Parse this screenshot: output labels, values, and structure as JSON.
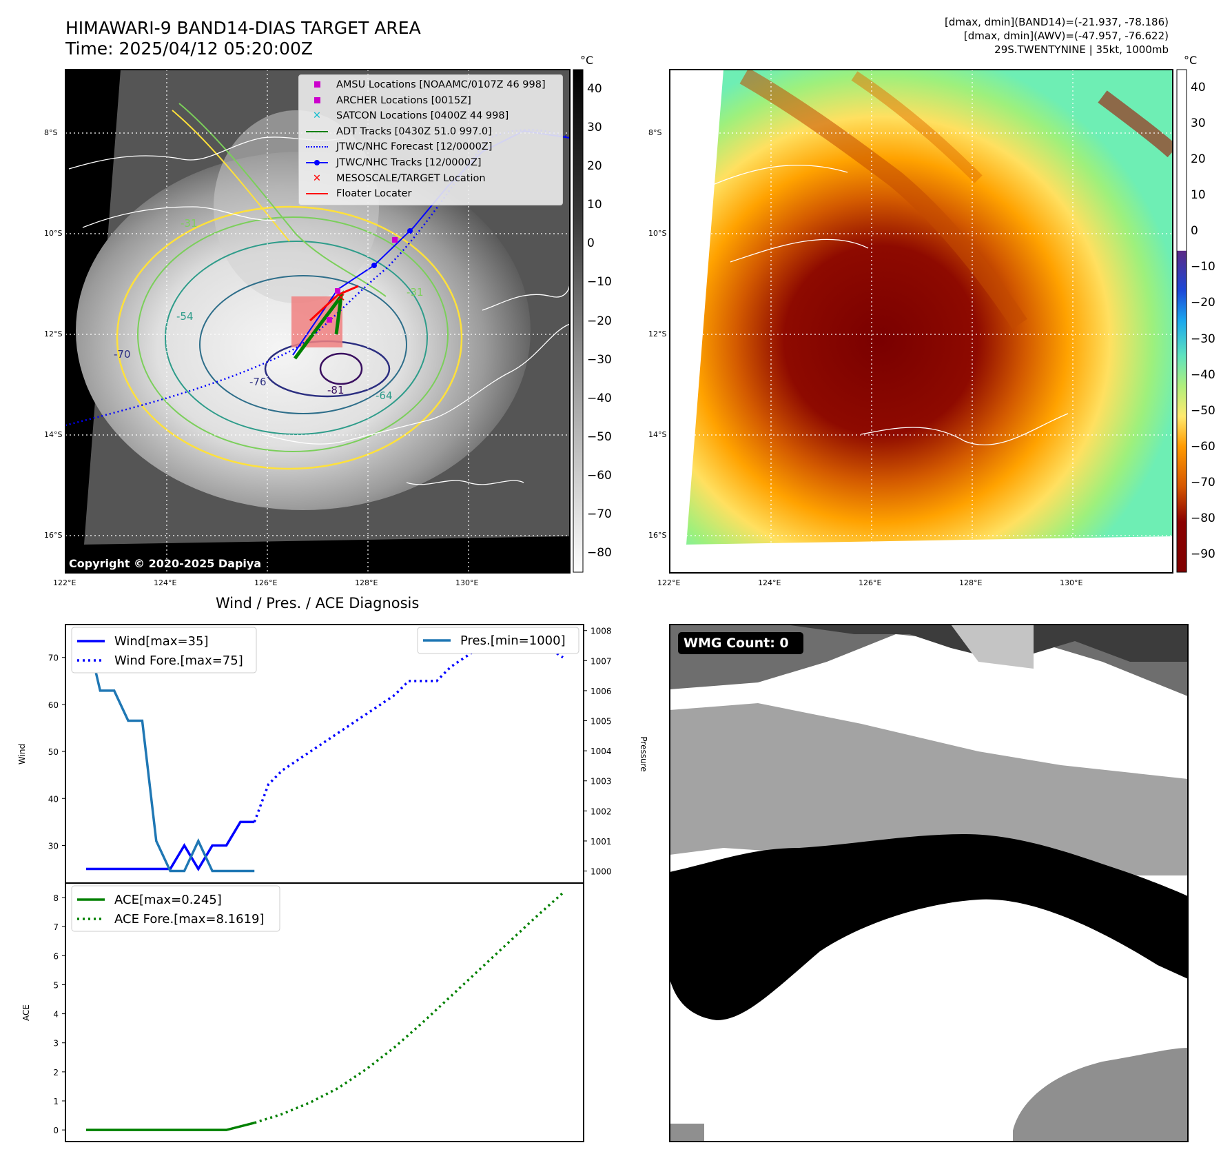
{
  "header": {
    "title": "HIMAWARI-9 BAND14-DIAS TARGET AREA",
    "time": "Time: 2025/04/12 05:20:00Z",
    "info_lines": [
      "[dmax, dmin](BAND14)=(-21.937, -78.186)",
      "[dmax, dmin](AWV)=(-47.957, -76.622)",
      "29S.TWENTYNINE | 35kt, 1000mb"
    ]
  },
  "map": {
    "lat_labels": [
      "8°S",
      "10°S",
      "12°S",
      "14°S",
      "16°S"
    ],
    "lon_labels": [
      "122°E",
      "124°E",
      "126°E",
      "128°E",
      "130°E"
    ],
    "lat_values": [
      -8,
      -10,
      -12,
      -14,
      -16
    ],
    "lon_values": [
      122,
      124,
      126,
      128,
      130
    ],
    "copyright": "Copyright © 2020-2025 Dapiya",
    "contour_labels": [
      "-31",
      "-54",
      "-76",
      "-81",
      "-64",
      "-31",
      "-70"
    ],
    "legend": [
      {
        "label": "AMSU Locations [NOAAMC/0107Z 46 998]",
        "color": "#cc00cc",
        "marker": "square"
      },
      {
        "label": "ARCHER Locations [0015Z]",
        "color": "#cc00cc",
        "marker": "square"
      },
      {
        "label": "SATCON Locations [0400Z 44 998]",
        "color": "#17becf",
        "marker": "x"
      },
      {
        "label": "ADT Tracks [0430Z 51.0 997.0]",
        "color": "#008000",
        "marker": "line"
      },
      {
        "label": "JTWC/NHC Forecast [12/0000Z]",
        "color": "#0000ff",
        "marker": "dotted"
      },
      {
        "label": "JTWC/NHC Tracks [12/0000Z]",
        "color": "#0000ff",
        "marker": "line-dot"
      },
      {
        "label": "MESOSCALE/TARGET Location",
        "color": "#ff0000",
        "marker": "x"
      },
      {
        "label": "Floater Locater",
        "color": "#ff0000",
        "marker": "line"
      }
    ]
  },
  "colorbar_left": {
    "unit": "°C",
    "ticks": [
      "40",
      "30",
      "20",
      "10",
      "0",
      "−10",
      "−20",
      "−30",
      "−40",
      "−50",
      "−60",
      "−70",
      "−80"
    ]
  },
  "colorbar_right": {
    "unit": "°C",
    "ticks": [
      "40",
      "30",
      "20",
      "10",
      "0",
      "−10",
      "−20",
      "−30",
      "−40",
      "−50",
      "−60",
      "−70",
      "−80",
      "−90"
    ]
  },
  "wmg": {
    "label": "WMG Count: 0"
  },
  "colors": {
    "wind": "#0000ff",
    "pressure": "#1f77b4",
    "ace": "#008000"
  },
  "chart_data": [
    {
      "type": "line",
      "title": "Wind / Pres. / ACE Diagnosis",
      "ylabel": "Wind",
      "y2label": "Pressure",
      "ylim": [
        22,
        77
      ],
      "y2lim": [
        999.6,
        1008.2
      ],
      "yticks": [
        30,
        40,
        50,
        60,
        70
      ],
      "y2ticks": [
        1000,
        1001,
        1002,
        1003,
        1004,
        1005,
        1006,
        1007,
        1008
      ],
      "legend_left": [
        "Wind[max=35]",
        "Wind Fore.[max=75]"
      ],
      "legend_right": [
        "Pres.[min=1000]"
      ],
      "series": [
        {
          "name": "Wind[max=35]",
          "axis": "left",
          "style": "solid",
          "x": [
            0,
            1,
            2,
            3,
            4,
            5,
            6,
            7,
            8,
            9,
            10,
            11,
            12
          ],
          "values": [
            25,
            25,
            25,
            25,
            25,
            25,
            25,
            30,
            25,
            30,
            30,
            35,
            35
          ]
        },
        {
          "name": "Wind Fore.[max=75]",
          "axis": "left",
          "style": "dotted",
          "x": [
            12,
            13,
            14,
            15,
            16,
            17,
            18,
            19,
            20,
            21,
            22,
            23,
            24,
            25,
            26,
            27,
            28,
            29,
            30,
            31,
            32,
            33,
            34
          ],
          "values": [
            35,
            43,
            46,
            48,
            50,
            52,
            54,
            56,
            58,
            60,
            62,
            65,
            65,
            65,
            68,
            70,
            72,
            74,
            75,
            75,
            72,
            72,
            70
          ]
        },
        {
          "name": "Pres.[min=1000]",
          "axis": "right",
          "style": "solid",
          "x": [
            0,
            1,
            2,
            3,
            4,
            5,
            6,
            7,
            8,
            9,
            10,
            11,
            12
          ],
          "values": [
            1008,
            1006,
            1006,
            1005,
            1005,
            1001,
            1000,
            1000,
            1001,
            1000,
            1000,
            1000,
            1000
          ]
        }
      ]
    },
    {
      "type": "line",
      "ylabel": "ACE",
      "ylim": [
        -0.4,
        8.5
      ],
      "yticks": [
        0,
        1,
        2,
        3,
        4,
        5,
        6,
        7,
        8
      ],
      "legend": [
        "ACE[max=0.245]",
        "ACE Fore.[max=8.1619]"
      ],
      "series": [
        {
          "name": "ACE[max=0.245]",
          "style": "solid",
          "x": [
            0,
            10,
            12
          ],
          "values": [
            0,
            0,
            0.245
          ]
        },
        {
          "name": "ACE Fore.[max=8.1619]",
          "style": "dotted",
          "x": [
            12,
            14,
            16,
            18,
            20,
            22,
            24,
            26,
            28,
            30,
            32,
            34
          ],
          "values": [
            0.245,
            0.55,
            0.95,
            1.45,
            2.1,
            2.85,
            3.7,
            4.6,
            5.5,
            6.4,
            7.3,
            8.1619
          ]
        }
      ]
    }
  ]
}
